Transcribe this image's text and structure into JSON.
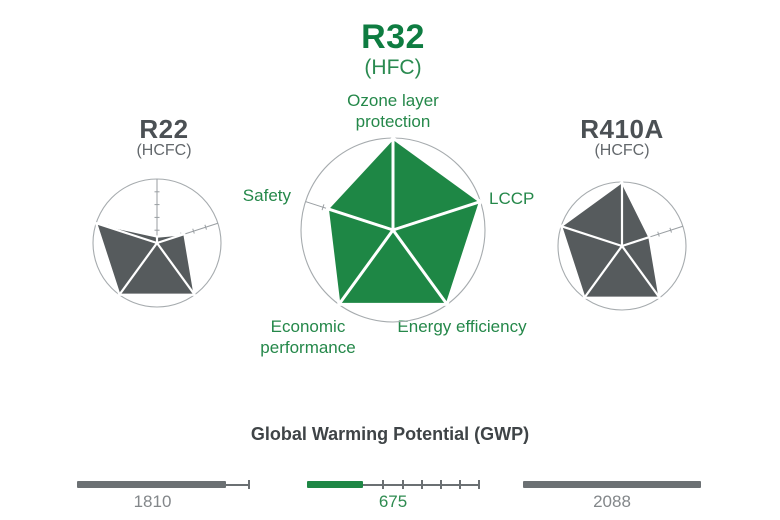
{
  "page": {
    "background": "#ffffff"
  },
  "main_chart": {
    "title": "R32",
    "subtitle": "(HFC)",
    "axis_labels": {
      "top": "Ozone layer protection",
      "right": "LCCP",
      "bottom_right": "Energy efficiency",
      "bottom_left": "Economic performance",
      "left": "Safety"
    }
  },
  "left_chart": {
    "title": "R22",
    "subtitle": "(HCFC)"
  },
  "right_chart": {
    "title": "R410A",
    "subtitle": "(HCFC)"
  },
  "gwp": {
    "title": "Global Warming Potential (GWP)",
    "labels": {
      "r22": "1810",
      "r32": "675",
      "r410a": "2088"
    }
  },
  "colors": {
    "green_fill": "#1e8745",
    "green_title": "#0e7c41",
    "green_label": "#2e8b50",
    "gray_fill": "#565b5d",
    "gray_title": "#4b5054",
    "axis_gray": "#999ea2",
    "circle_gray": "#a6abae",
    "bar_gray": "#6b7073",
    "bar_label_gray": "#83878a"
  },
  "chart_data": [
    {
      "type": "radar",
      "name": "R22",
      "refrigerant_class": "(HCFC)",
      "axes": [
        "Ozone layer protection",
        "LCCP",
        "Energy efficiency",
        "Economic performance",
        "Safety"
      ],
      "scale": [
        0,
        1
      ],
      "tick_interval": 0.2,
      "values": [
        0.1,
        0.45,
        1.0,
        1.0,
        1.0
      ],
      "fill": "#565b5d"
    },
    {
      "type": "radar",
      "name": "R32",
      "refrigerant_class": "(HFC)",
      "axes": [
        "Ozone layer protection",
        "LCCP",
        "Energy efficiency",
        "Economic performance",
        "Safety"
      ],
      "scale": [
        0,
        1
      ],
      "tick_interval": 0.2,
      "values": [
        1.0,
        1.0,
        1.0,
        1.0,
        0.75
      ],
      "fill": "#1e8745"
    },
    {
      "type": "radar",
      "name": "R410A",
      "refrigerant_class": "(HCFC)",
      "axes": [
        "Ozone layer protection",
        "LCCP",
        "Energy efficiency",
        "Economic performance",
        "Safety"
      ],
      "scale": [
        0,
        1
      ],
      "tick_interval": 0.2,
      "values": [
        1.0,
        0.45,
        1.0,
        1.0,
        1.0
      ],
      "fill": "#565b5d"
    },
    {
      "type": "bar",
      "title": "Global Warming Potential (GWP)",
      "categories": [
        "R22",
        "R32",
        "R410A"
      ],
      "values": [
        1810,
        675,
        2088
      ],
      "value_labels": [
        "1810",
        "675",
        "2088"
      ],
      "max": 2088,
      "bar_colors": [
        "#6b7073",
        "#1e8745",
        "#6b7073"
      ],
      "label_colors": [
        "#83878a",
        "#2e8b50",
        "#83878a"
      ],
      "scale_ticks": [
        [
          1.0
        ],
        [
          0.444,
          0.556,
          0.667,
          0.778,
          0.889,
          1.0
        ],
        []
      ]
    }
  ]
}
